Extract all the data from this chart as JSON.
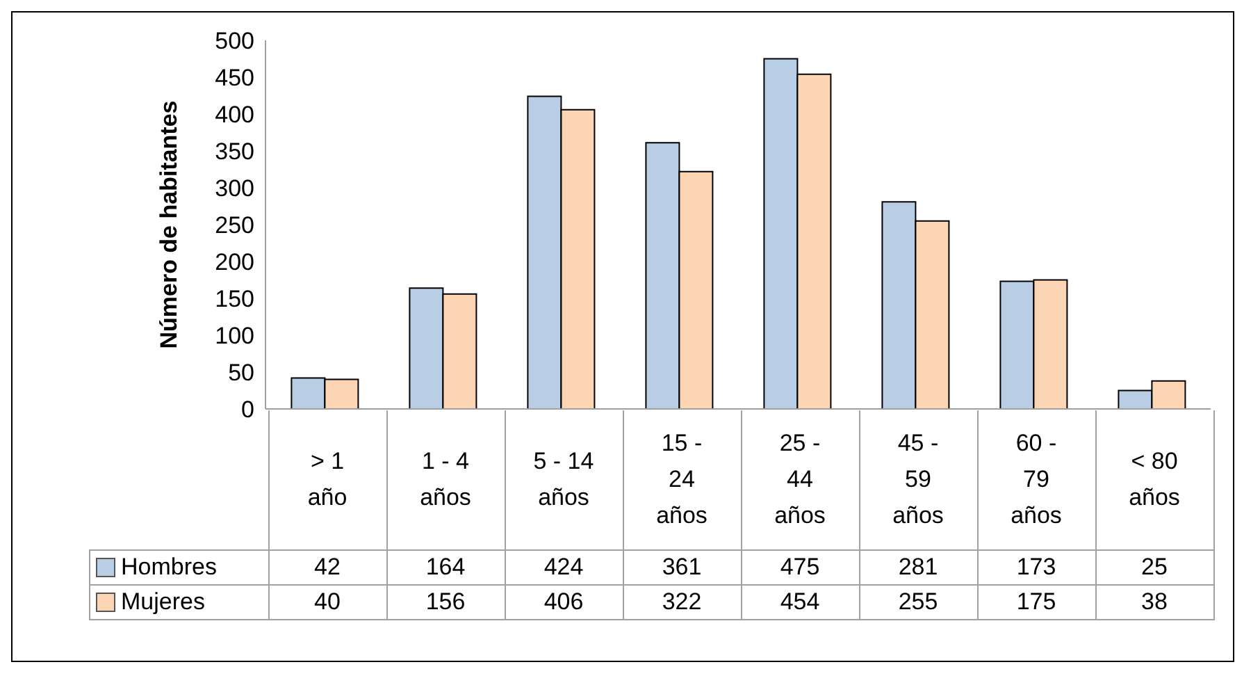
{
  "chart_data": {
    "type": "bar",
    "ylabel": "Número de habitantes",
    "categories": [
      "> 1 año",
      "1 - 4 años",
      "5 - 14 años",
      "15 - 24 años",
      "25 - 44 años",
      "45 - 59 años",
      "60 - 79 años",
      "< 80 años"
    ],
    "series": [
      {
        "name": "Hombres",
        "color": "#b9cde5",
        "values": [
          42,
          164,
          424,
          361,
          475,
          281,
          173,
          25
        ]
      },
      {
        "name": "Mujeres",
        "color": "#fcd5b5",
        "values": [
          40,
          156,
          406,
          322,
          454,
          255,
          175,
          38
        ]
      }
    ],
    "ylim": [
      0,
      500
    ],
    "yticks": [
      0,
      50,
      100,
      150,
      200,
      250,
      300,
      350,
      400,
      450,
      500
    ],
    "grid": false,
    "legend": "bottom",
    "data_labels": true
  }
}
